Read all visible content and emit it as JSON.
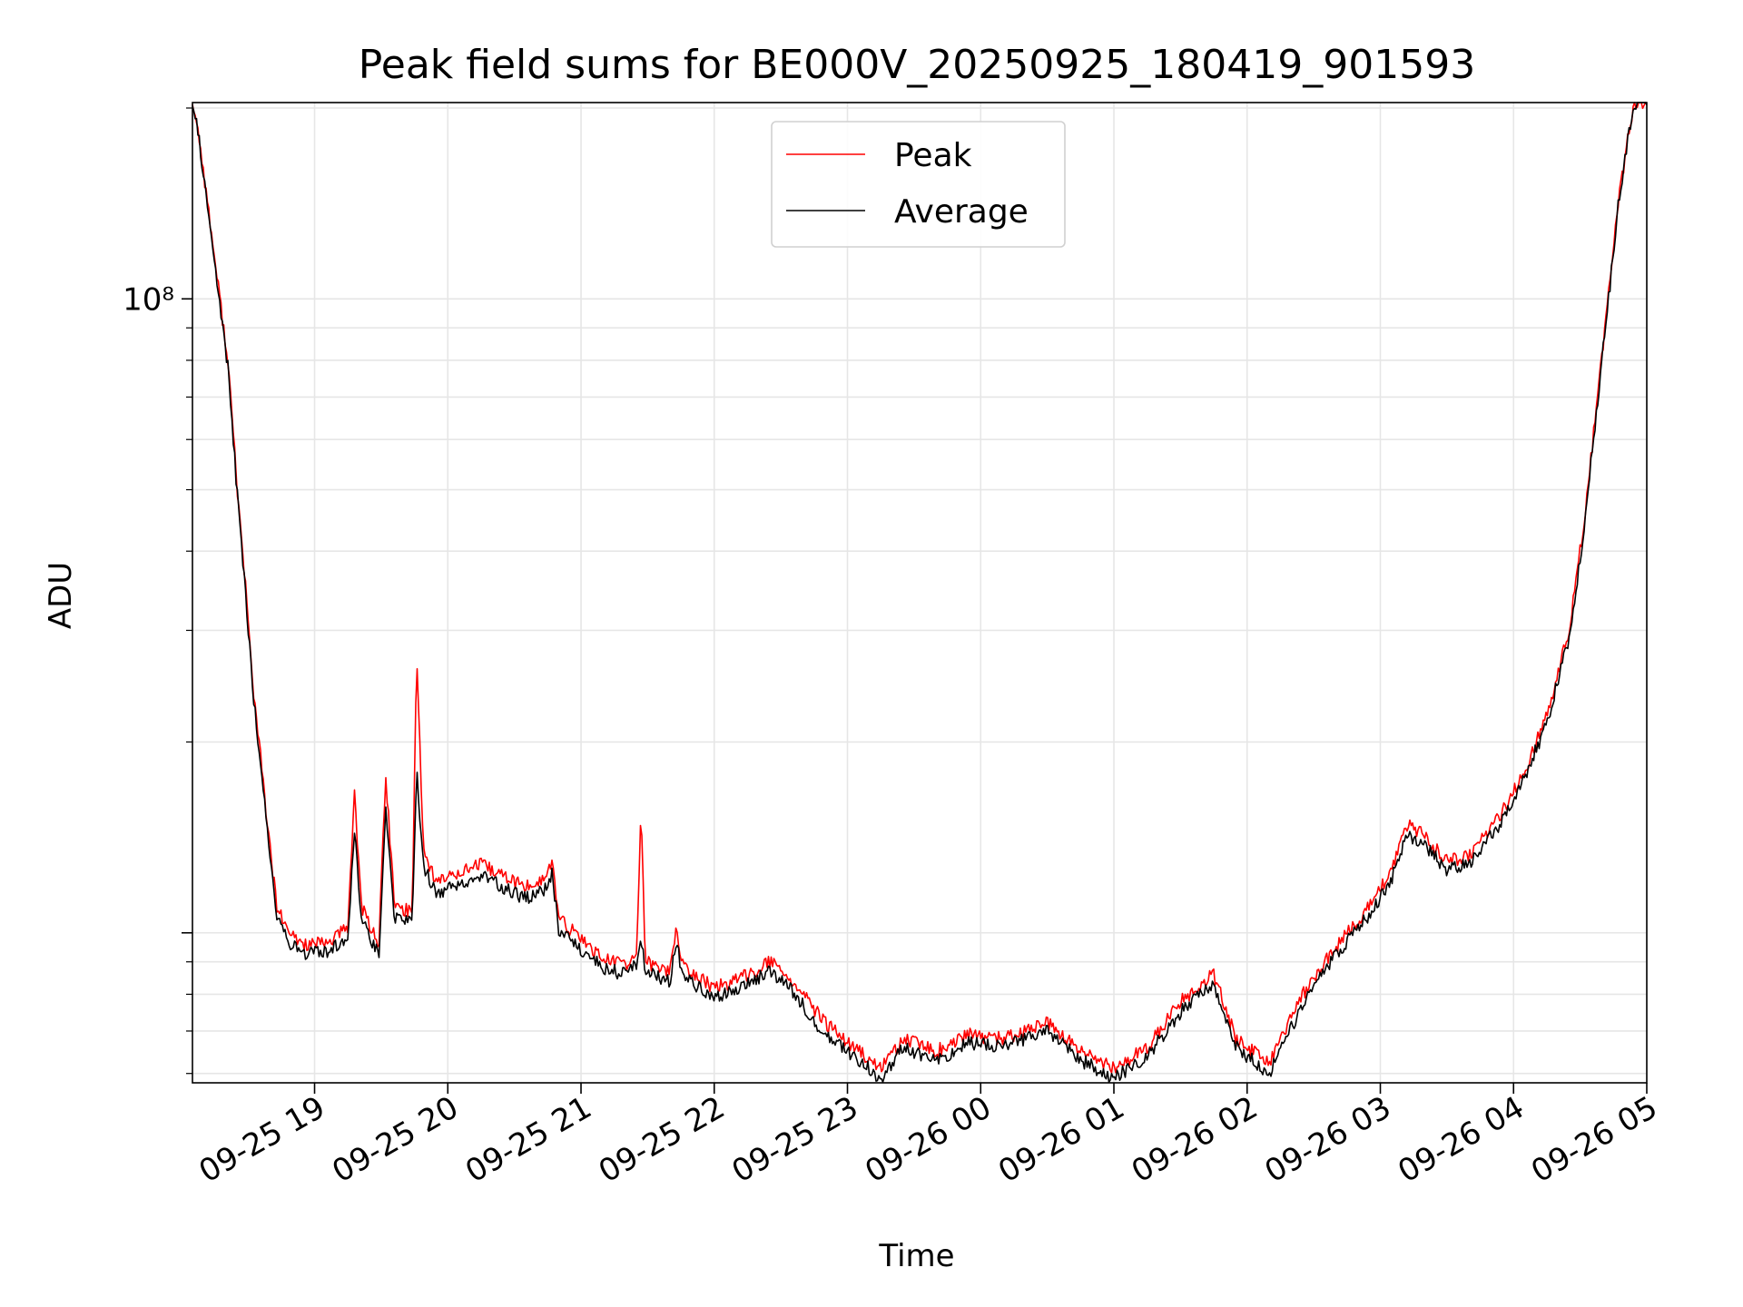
{
  "chart_data": {
    "type": "line",
    "title": "Peak field sums for BE000V_20250925_180419_901593",
    "xlabel": "Time",
    "ylabel": "ADU",
    "x_axis": {
      "type": "time",
      "range": [
        "2025-09-25 18:05",
        "2025-09-26 05:00"
      ],
      "tick_labels": [
        "09-25 19",
        "09-25 20",
        "09-25 21",
        "09-25 22",
        "09-25 23",
        "09-26 00",
        "09-26 01",
        "09-26 02",
        "09-26 03",
        "09-26 04",
        "09-26 05"
      ],
      "tick_times": [
        "2025-09-25 19:00",
        "2025-09-25 20:00",
        "2025-09-25 21:00",
        "2025-09-25 22:00",
        "2025-09-25 23:00",
        "2025-09-26 00:00",
        "2025-09-26 01:00",
        "2025-09-26 02:00",
        "2025-09-26 03:00",
        "2025-09-26 04:00",
        "2025-09-26 05:00"
      ]
    },
    "y_axis": {
      "scale": "log",
      "range": [
        5800000,
        204000000
      ],
      "major_ticks": [
        100000000
      ],
      "major_tick_labels": [
        "10⁸"
      ]
    },
    "grid": true,
    "legend_placement": "upper center",
    "series": [
      {
        "name": "Peak",
        "color": "#ff0000",
        "points": [
          [
            "2025-09-25 18:05",
            205000000
          ],
          [
            "2025-09-25 18:08",
            180000000
          ],
          [
            "2025-09-25 18:12",
            140000000
          ],
          [
            "2025-09-25 18:17",
            102000000
          ],
          [
            "2025-09-25 18:21",
            80000000
          ],
          [
            "2025-09-25 18:25",
            51000000
          ],
          [
            "2025-09-25 18:29",
            35000000
          ],
          [
            "2025-09-25 18:32",
            25000000
          ],
          [
            "2025-09-25 18:36",
            18500000
          ],
          [
            "2025-09-25 18:40",
            13500000
          ],
          [
            "2025-09-25 18:43",
            11000000
          ],
          [
            "2025-09-25 18:48",
            10000000
          ],
          [
            "2025-09-25 18:55",
            9600000
          ],
          [
            "2025-09-25 19:05",
            9600000
          ],
          [
            "2025-09-25 19:15",
            10200000
          ],
          [
            "2025-09-25 19:18",
            16800000
          ],
          [
            "2025-09-25 19:21",
            11000000
          ],
          [
            "2025-09-25 19:29",
            9600000
          ],
          [
            "2025-09-25 19:32",
            17800000
          ],
          [
            "2025-09-25 19:36",
            11000000
          ],
          [
            "2025-09-25 19:44",
            10800000
          ],
          [
            "2025-09-25 19:46",
            28000000
          ],
          [
            "2025-09-25 19:49",
            13500000
          ],
          [
            "2025-09-25 19:55",
            12000000
          ],
          [
            "2025-09-25 20:05",
            12500000
          ],
          [
            "2025-09-25 20:15",
            12800000
          ],
          [
            "2025-09-25 20:25",
            12300000
          ],
          [
            "2025-09-25 20:35",
            11800000
          ],
          [
            "2025-09-25 20:44",
            12200000
          ],
          [
            "2025-09-25 20:47",
            13000000
          ],
          [
            "2025-09-25 20:50",
            10500000
          ],
          [
            "2025-09-25 21:00",
            9800000
          ],
          [
            "2025-09-25 21:10",
            9100000
          ],
          [
            "2025-09-25 21:20",
            8900000
          ],
          [
            "2025-09-25 21:25",
            9200000
          ],
          [
            "2025-09-25 21:27",
            15500000
          ],
          [
            "2025-09-25 21:29",
            9000000
          ],
          [
            "2025-09-25 21:40",
            8700000
          ],
          [
            "2025-09-25 21:43",
            10200000
          ],
          [
            "2025-09-25 21:46",
            8800000
          ],
          [
            "2025-09-25 22:00",
            8200000
          ],
          [
            "2025-09-25 22:10",
            8400000
          ],
          [
            "2025-09-25 22:25",
            9000000
          ],
          [
            "2025-09-25 22:35",
            8400000
          ],
          [
            "2025-09-25 22:50",
            7200000
          ],
          [
            "2025-09-25 23:05",
            6500000
          ],
          [
            "2025-09-25 23:15",
            6100000
          ],
          [
            "2025-09-25 23:25",
            6800000
          ],
          [
            "2025-09-25 23:40",
            6500000
          ],
          [
            "2025-09-25 23:55",
            6900000
          ],
          [
            "2025-09-26 00:10",
            6800000
          ],
          [
            "2025-09-26 00:30",
            7200000
          ],
          [
            "2025-09-26 00:45",
            6500000
          ],
          [
            "2025-09-26 01:00",
            6100000
          ],
          [
            "2025-09-26 01:15",
            6600000
          ],
          [
            "2025-09-26 01:30",
            7800000
          ],
          [
            "2025-09-26 01:45",
            8600000
          ],
          [
            "2025-09-26 01:55",
            6800000
          ],
          [
            "2025-09-26 02:10",
            6200000
          ],
          [
            "2025-09-26 02:25",
            8000000
          ],
          [
            "2025-09-26 02:40",
            9500000
          ],
          [
            "2025-09-26 02:55",
            11000000
          ],
          [
            "2025-09-26 03:05",
            12500000
          ],
          [
            "2025-09-26 03:12",
            14800000
          ],
          [
            "2025-09-26 03:20",
            14200000
          ],
          [
            "2025-09-26 03:30",
            13000000
          ],
          [
            "2025-09-26 03:40",
            13200000
          ],
          [
            "2025-09-26 03:55",
            15500000
          ],
          [
            "2025-09-26 04:05",
            18000000
          ],
          [
            "2025-09-26 04:15",
            22000000
          ],
          [
            "2025-09-26 04:25",
            30000000
          ],
          [
            "2025-09-26 04:32",
            45000000
          ],
          [
            "2025-09-26 04:37",
            66000000
          ],
          [
            "2025-09-26 04:42",
            95000000
          ],
          [
            "2025-09-26 04:47",
            140000000
          ],
          [
            "2025-09-26 04:52",
            185000000
          ],
          [
            "2025-09-26 04:55",
            204000000
          ],
          [
            "2025-09-26 05:00",
            204000000
          ]
        ]
      },
      {
        "name": "Average",
        "color": "#000000",
        "points": [
          [
            "2025-09-25 18:05",
            204000000
          ],
          [
            "2025-09-25 18:08",
            178000000
          ],
          [
            "2025-09-25 18:12",
            138000000
          ],
          [
            "2025-09-25 18:17",
            100000000
          ],
          [
            "2025-09-25 18:21",
            78000000
          ],
          [
            "2025-09-25 18:25",
            50000000
          ],
          [
            "2025-09-25 18:29",
            34000000
          ],
          [
            "2025-09-25 18:32",
            24500000
          ],
          [
            "2025-09-25 18:36",
            18000000
          ],
          [
            "2025-09-25 18:40",
            13200000
          ],
          [
            "2025-09-25 18:43",
            10700000
          ],
          [
            "2025-09-25 18:48",
            9700000
          ],
          [
            "2025-09-25 18:55",
            9300000
          ],
          [
            "2025-09-25 19:05",
            9300000
          ],
          [
            "2025-09-25 19:15",
            9900000
          ],
          [
            "2025-09-25 19:18",
            14500000
          ],
          [
            "2025-09-25 19:21",
            10600000
          ],
          [
            "2025-09-25 19:29",
            9200000
          ],
          [
            "2025-09-25 19:32",
            15800000
          ],
          [
            "2025-09-25 19:36",
            10600000
          ],
          [
            "2025-09-25 19:44",
            10400000
          ],
          [
            "2025-09-25 19:46",
            18000000
          ],
          [
            "2025-09-25 19:49",
            12800000
          ],
          [
            "2025-09-25 19:55",
            11500000
          ],
          [
            "2025-09-25 20:05",
            12000000
          ],
          [
            "2025-09-25 20:15",
            12300000
          ],
          [
            "2025-09-25 20:25",
            11800000
          ],
          [
            "2025-09-25 20:35",
            11300000
          ],
          [
            "2025-09-25 20:44",
            11700000
          ],
          [
            "2025-09-25 20:47",
            12400000
          ],
          [
            "2025-09-25 20:50",
            10100000
          ],
          [
            "2025-09-25 21:00",
            9400000
          ],
          [
            "2025-09-25 21:10",
            8800000
          ],
          [
            "2025-09-25 21:20",
            8600000
          ],
          [
            "2025-09-25 21:25",
            8900000
          ],
          [
            "2025-09-25 21:27",
            9800000
          ],
          [
            "2025-09-25 21:29",
            8700000
          ],
          [
            "2025-09-25 21:40",
            8400000
          ],
          [
            "2025-09-25 21:43",
            9600000
          ],
          [
            "2025-09-25 21:46",
            8500000
          ],
          [
            "2025-09-25 22:00",
            7900000
          ],
          [
            "2025-09-25 22:10",
            8100000
          ],
          [
            "2025-09-25 22:25",
            8700000
          ],
          [
            "2025-09-25 22:35",
            8100000
          ],
          [
            "2025-09-25 22:50",
            6900000
          ],
          [
            "2025-09-25 23:05",
            6300000
          ],
          [
            "2025-09-25 23:15",
            5900000
          ],
          [
            "2025-09-25 23:25",
            6600000
          ],
          [
            "2025-09-25 23:40",
            6300000
          ],
          [
            "2025-09-25 23:55",
            6700000
          ],
          [
            "2025-09-26 00:10",
            6600000
          ],
          [
            "2025-09-26 00:30",
            7000000
          ],
          [
            "2025-09-26 00:45",
            6300000
          ],
          [
            "2025-09-26 01:00",
            5900000
          ],
          [
            "2025-09-26 01:15",
            6400000
          ],
          [
            "2025-09-26 01:30",
            7500000
          ],
          [
            "2025-09-26 01:45",
            8300000
          ],
          [
            "2025-09-26 01:55",
            6600000
          ],
          [
            "2025-09-26 02:10",
            6000000
          ],
          [
            "2025-09-26 02:25",
            7700000
          ],
          [
            "2025-09-26 02:40",
            9200000
          ],
          [
            "2025-09-26 02:55",
            10700000
          ],
          [
            "2025-09-26 03:05",
            12100000
          ],
          [
            "2025-09-26 03:12",
            14300000
          ],
          [
            "2025-09-26 03:20",
            13700000
          ],
          [
            "2025-09-26 03:30",
            12600000
          ],
          [
            "2025-09-26 03:40",
            12800000
          ],
          [
            "2025-09-26 03:55",
            15000000
          ],
          [
            "2025-09-26 04:05",
            17500000
          ],
          [
            "2025-09-26 04:15",
            21500000
          ],
          [
            "2025-09-26 04:25",
            29000000
          ],
          [
            "2025-09-26 04:32",
            44000000
          ],
          [
            "2025-09-26 04:37",
            65000000
          ],
          [
            "2025-09-26 04:42",
            94000000
          ],
          [
            "2025-09-26 04:47",
            139000000
          ],
          [
            "2025-09-26 04:52",
            184000000
          ],
          [
            "2025-09-26 04:55",
            204000000
          ],
          [
            "2025-09-26 05:00",
            204000000
          ]
        ]
      }
    ]
  }
}
